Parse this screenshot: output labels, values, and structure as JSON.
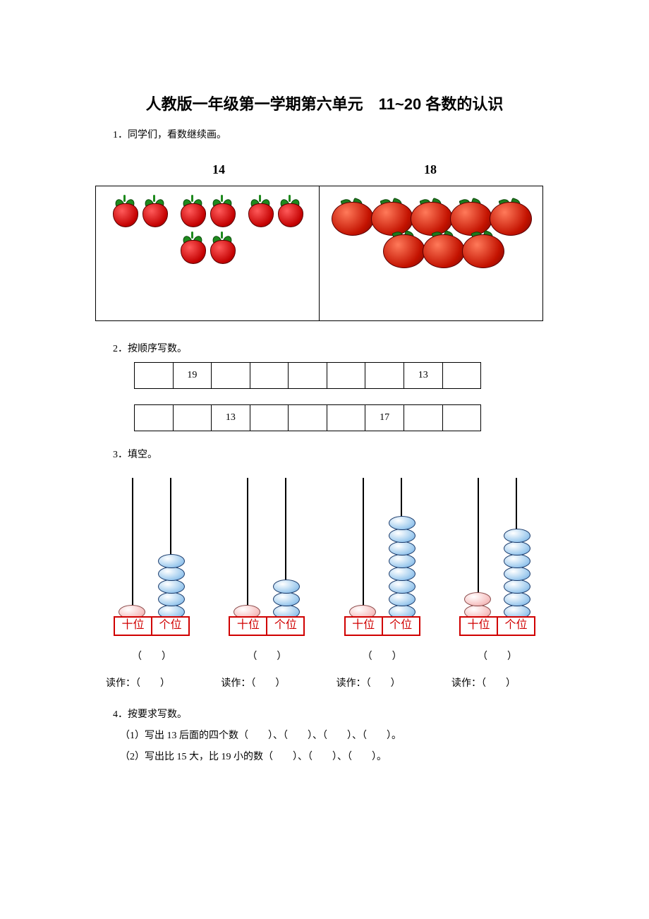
{
  "title": "人教版一年级第一学期第六单元　11~20 各数的认识",
  "q1": {
    "prompt": "1．同学们，看数继续画。",
    "left_number": "14",
    "right_number": "18"
  },
  "q2": {
    "prompt": "2．按顺序写数。",
    "row1": [
      "",
      "19",
      "",
      "",
      "",
      "",
      "",
      "13",
      ""
    ],
    "row2": [
      "",
      "",
      "13",
      "",
      "",
      "",
      "17",
      "",
      ""
    ]
  },
  "q3": {
    "prompt": "3．填空。",
    "labels": {
      "tens": "十位",
      "ones": "个位"
    },
    "bead_colors": {
      "tens": "#f0b8b8",
      "ones": "#a8d0f0"
    },
    "items": [
      {
        "tens_beads": 1,
        "ones_beads": 5
      },
      {
        "tens_beads": 1,
        "ones_beads": 3
      },
      {
        "tens_beads": 1,
        "ones_beads": 8
      },
      {
        "tens_beads": 2,
        "ones_beads": 7
      }
    ],
    "blank": "（　　）",
    "read_label": "读作：（　　）"
  },
  "q4": {
    "prompt": "4．按要求写数。",
    "sub1": "（1）写出 13 后面的四个数（　　）、（　　）、（　　）、（　　）。",
    "sub2": "（2）写出比 15 大，比 19 小的数（　　）、（　　）、（　　）。"
  }
}
